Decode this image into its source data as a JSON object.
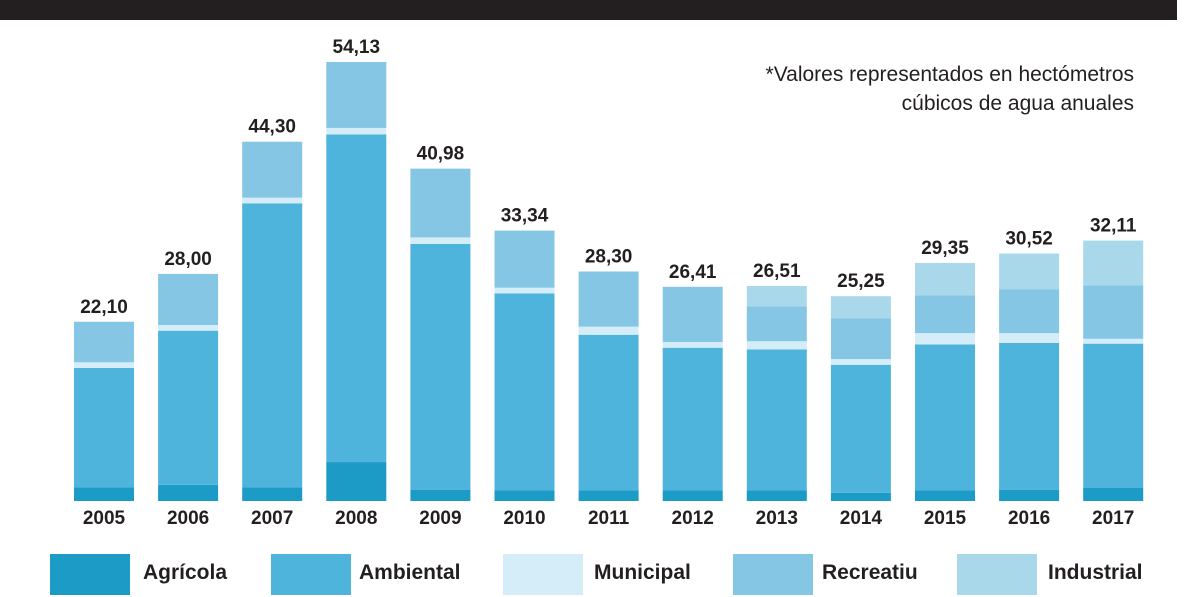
{
  "note": {
    "line1": "*Valores representados en hectómetros",
    "line2": "cúbicos de agua anuales"
  },
  "chart_data": {
    "type": "bar",
    "stacked": true,
    "categories": [
      "2005",
      "2006",
      "2007",
      "2008",
      "2009",
      "2010",
      "2011",
      "2012",
      "2013",
      "2014",
      "2015",
      "2016",
      "2017"
    ],
    "totals": [
      22.1,
      28.0,
      44.3,
      54.13,
      40.98,
      33.34,
      28.3,
      26.41,
      26.51,
      25.25,
      29.35,
      30.52,
      32.11
    ],
    "total_labels": [
      "22,10",
      "28,00",
      "44,30",
      "54,13",
      "40,98",
      "33,34",
      "28,30",
      "26,41",
      "26,51",
      "25,25",
      "29,35",
      "30,52",
      "32,11"
    ],
    "series": [
      {
        "name": "Agrícola",
        "color": "#1b9bc5",
        "values": [
          1.7,
          2.0,
          1.7,
          4.8,
          1.4,
          1.3,
          1.3,
          1.3,
          1.3,
          1.0,
          1.3,
          1.4,
          1.6
        ]
      },
      {
        "name": "Ambiental",
        "color": "#4fb4dc",
        "values": [
          14.7,
          19.0,
          35.0,
          40.4,
          30.3,
          24.3,
          19.2,
          17.6,
          17.4,
          15.8,
          18.0,
          18.1,
          17.8
        ]
      },
      {
        "name": "Municipal",
        "color": "#d4edf8",
        "values": [
          0.7,
          0.7,
          0.7,
          0.8,
          0.8,
          0.7,
          1.0,
          0.7,
          1.0,
          0.7,
          1.4,
          1.2,
          0.6
        ]
      },
      {
        "name": "Recreatiu",
        "color": "#85c6e4",
        "values": [
          5.0,
          6.3,
          6.9,
          8.13,
          8.48,
          7.04,
          6.8,
          6.81,
          4.3,
          5.0,
          4.65,
          5.42,
          6.61
        ]
      },
      {
        "name": "Industrial",
        "color": "#a9d8eb",
        "values": [
          0.0,
          0.0,
          0.0,
          0.0,
          0.0,
          0.0,
          0.0,
          0.0,
          2.51,
          2.75,
          4.0,
          4.4,
          5.5
        ]
      }
    ],
    "ylim": [
      0,
      54.13
    ],
    "legend": "bottom"
  }
}
